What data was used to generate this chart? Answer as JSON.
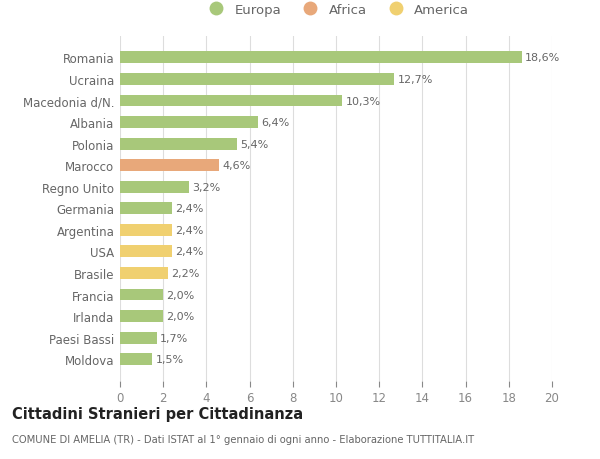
{
  "categories": [
    "Romania",
    "Ucraina",
    "Macedonia d/N.",
    "Albania",
    "Polonia",
    "Marocco",
    "Regno Unito",
    "Germania",
    "Argentina",
    "USA",
    "Brasile",
    "Francia",
    "Irlanda",
    "Paesi Bassi",
    "Moldova"
  ],
  "values": [
    18.6,
    12.7,
    10.3,
    6.4,
    5.4,
    4.6,
    3.2,
    2.4,
    2.4,
    2.4,
    2.2,
    2.0,
    2.0,
    1.7,
    1.5
  ],
  "labels": [
    "18,6%",
    "12,7%",
    "10,3%",
    "6,4%",
    "5,4%",
    "4,6%",
    "3,2%",
    "2,4%",
    "2,4%",
    "2,4%",
    "2,2%",
    "2,0%",
    "2,0%",
    "1,7%",
    "1,5%"
  ],
  "colors": [
    "#a8c87a",
    "#a8c87a",
    "#a8c87a",
    "#a8c87a",
    "#a8c87a",
    "#e8a87a",
    "#a8c87a",
    "#a8c87a",
    "#f0d070",
    "#f0d070",
    "#f0d070",
    "#a8c87a",
    "#a8c87a",
    "#a8c87a",
    "#a8c87a"
  ],
  "legend": [
    {
      "label": "Europa",
      "color": "#a8c87a"
    },
    {
      "label": "Africa",
      "color": "#e8a87a"
    },
    {
      "label": "America",
      "color": "#f0d070"
    }
  ],
  "xlim": [
    0,
    20
  ],
  "xticks": [
    0,
    2,
    4,
    6,
    8,
    10,
    12,
    14,
    16,
    18,
    20
  ],
  "title1": "Cittadini Stranieri per Cittadinanza",
  "title2": "COMUNE DI AMELIA (TR) - Dati ISTAT al 1° gennaio di ogni anno - Elaborazione TUTTITALIA.IT",
  "bg_color": "#ffffff",
  "grid_color": "#dddddd",
  "bar_height": 0.55
}
